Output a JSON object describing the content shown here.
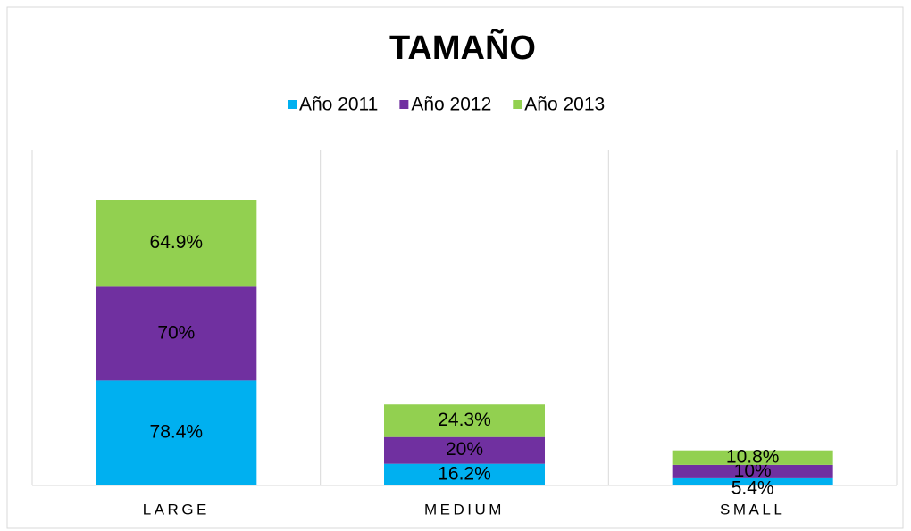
{
  "chart_data": {
    "type": "stacked_bar",
    "title": "TAMAÑO",
    "categories": [
      "LARGE",
      "MEDIUM",
      "SMALL"
    ],
    "series": [
      {
        "name": "Año 2011",
        "color": "#00b0f0",
        "values": [
          78.4,
          16.2,
          5.4
        ],
        "value_labels": [
          "78.4%",
          "16.2%",
          "5.4%"
        ]
      },
      {
        "name": "Año 2012",
        "color": "#7030a0",
        "values": [
          70,
          20,
          10
        ],
        "value_labels": [
          "70%",
          "20%",
          "10%"
        ]
      },
      {
        "name": "Año 2013",
        "color": "#92d050",
        "values": [
          64.9,
          24.3,
          10.8
        ],
        "value_labels": [
          "64.9%",
          "24.3%",
          "10.8%"
        ]
      }
    ],
    "legend": "top"
  }
}
